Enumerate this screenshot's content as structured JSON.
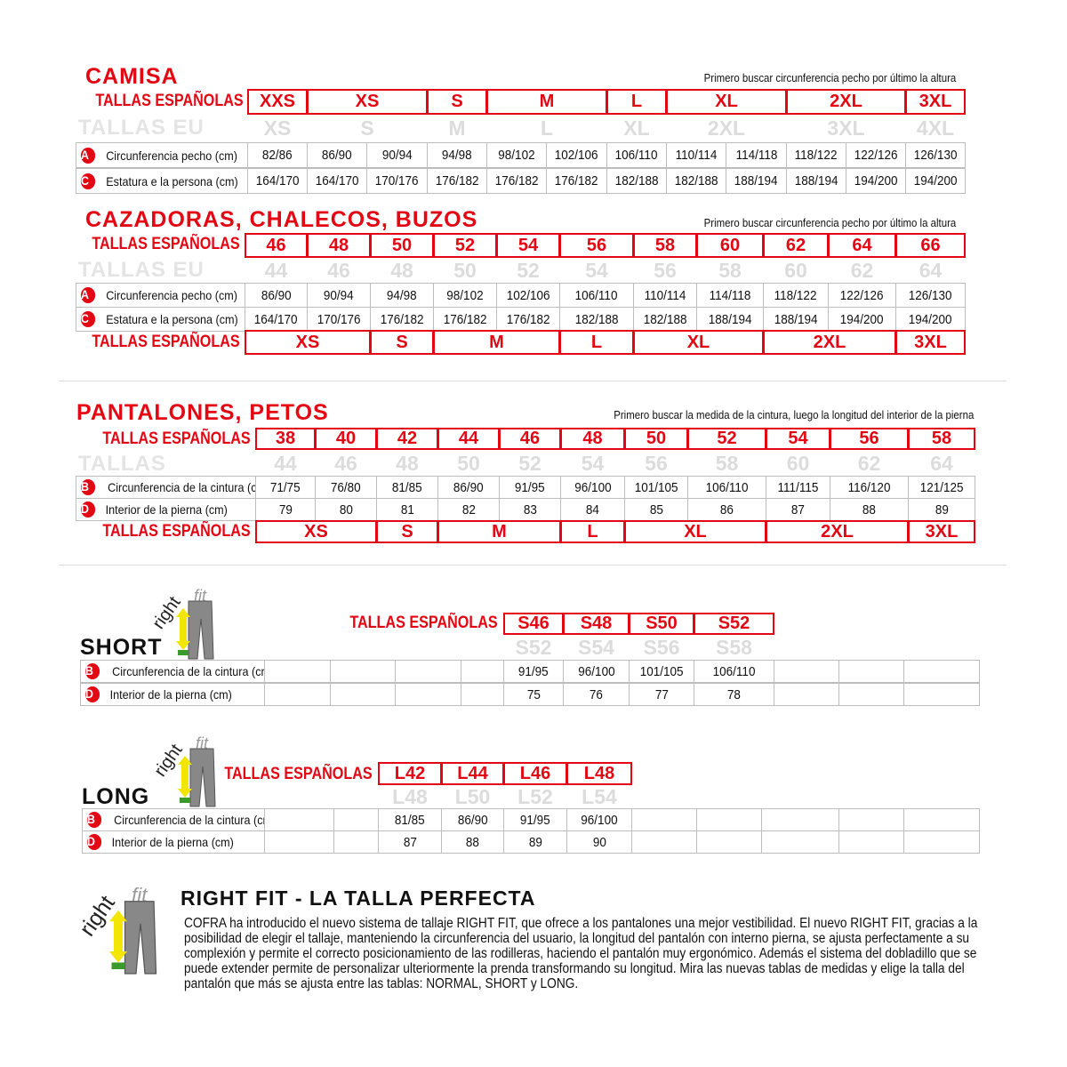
{
  "labels": {
    "tallas_es": "TALLAS ESPAÑOLAS",
    "tallas_eu": "TALLAS EU",
    "tallas": "TALLAS"
  },
  "camisa": {
    "title": "CAMISA",
    "note": "Primero buscar circunferencia pecho por último la altura",
    "es": [
      "XXS",
      "XS",
      "S",
      "M",
      "L",
      "XL",
      "2XL",
      "3XL"
    ],
    "eu": [
      "XS",
      "S",
      "M",
      "L",
      "XL",
      "2XL",
      "3XL",
      "4XL"
    ],
    "rows": [
      {
        "badge": "A",
        "label": "Circunferencia pecho (cm)",
        "values": [
          "82/86",
          "86/90",
          "90/94",
          "94/98",
          "98/102",
          "102/106",
          "106/110",
          "110/114",
          "114/118",
          "118/122",
          "122/126",
          "126/130"
        ]
      },
      {
        "badge": "C",
        "label": "Estatura e la persona (cm)",
        "values": [
          "164/170",
          "164/170",
          "170/176",
          "176/182",
          "176/182",
          "176/182",
          "182/188",
          "182/188",
          "188/194",
          "188/194",
          "194/200",
          "194/200"
        ]
      }
    ]
  },
  "cazadoras": {
    "title": "CAZADORAS, CHALECOS, BUZOS",
    "note": "Primero buscar circunferencia pecho por último la altura",
    "es": [
      "46",
      "48",
      "50",
      "52",
      "54",
      "56",
      "58",
      "60",
      "62",
      "64",
      "66"
    ],
    "eu": [
      "44",
      "46",
      "48",
      "50",
      "52",
      "54",
      "56",
      "58",
      "60",
      "62",
      "64"
    ],
    "rows": [
      {
        "badge": "A",
        "label": "Circunferencia pecho (cm)",
        "values": [
          "86/90",
          "90/94",
          "94/98",
          "98/102",
          "102/106",
          "106/110",
          "110/114",
          "114/118",
          "118/122",
          "122/126",
          "126/130"
        ]
      },
      {
        "badge": "C",
        "label": "Estatura e la persona (cm)",
        "values": [
          "164/170",
          "170/176",
          "176/182",
          "176/182",
          "176/182",
          "182/188",
          "182/188",
          "188/194",
          "188/194",
          "194/200",
          "194/200"
        ]
      }
    ],
    "es_letters": [
      "XS",
      "S",
      "M",
      "L",
      "XL",
      "2XL",
      "3XL"
    ]
  },
  "pantalones": {
    "title": "PANTALONES, PETOS",
    "note": "Primero buscar la medida de la cintura, luego la longitud del interior de la pierna",
    "es": [
      "38",
      "40",
      "42",
      "44",
      "46",
      "48",
      "50",
      "52",
      "54",
      "56",
      "58"
    ],
    "eu": [
      "44",
      "46",
      "48",
      "50",
      "52",
      "54",
      "56",
      "58",
      "60",
      "62",
      "64"
    ],
    "rows": [
      {
        "badge": "B",
        "label": "Circunferencia de la cintura (cm)",
        "values": [
          "71/75",
          "76/80",
          "81/85",
          "86/90",
          "91/95",
          "96/100",
          "101/105",
          "106/110",
          "111/115",
          "116/120",
          "121/125"
        ]
      },
      {
        "badge": "D",
        "label": "Interior de la pierna (cm)",
        "values": [
          "79",
          "80",
          "81",
          "82",
          "83",
          "84",
          "85",
          "86",
          "87",
          "88",
          "89"
        ]
      }
    ],
    "es_letters": [
      "XS",
      "S",
      "M",
      "L",
      "XL",
      "2XL",
      "3XL"
    ]
  },
  "short": {
    "title": "SHORT",
    "logo": "rightfit",
    "es": [
      "S46",
      "S48",
      "S50",
      "S52"
    ],
    "eu": [
      "S52",
      "S54",
      "S56",
      "S58"
    ],
    "rows": [
      {
        "badge": "B",
        "label": "Circunferencia de la cintura (cm)",
        "values": [
          "",
          "",
          "",
          "",
          "91/95",
          "96/100",
          "101/105",
          "106/110",
          "",
          "",
          ""
        ]
      },
      {
        "badge": "D",
        "label": "Interior de la pierna (cm)",
        "values": [
          "",
          "",
          "",
          "",
          "75",
          "76",
          "77",
          "78",
          "",
          "",
          ""
        ]
      }
    ]
  },
  "long": {
    "title": "LONG",
    "logo": "rightfit",
    "es": [
      "L42",
      "L44",
      "L46",
      "L48"
    ],
    "eu": [
      "L48",
      "L50",
      "L52",
      "L54"
    ],
    "rows": [
      {
        "badge": "B",
        "label": "Circunferencia de la cintura (cm)",
        "values": [
          "",
          "",
          "81/85",
          "86/90",
          "91/95",
          "96/100",
          "",
          "",
          "",
          "",
          ""
        ]
      },
      {
        "badge": "D",
        "label": "Interior de la pierna (cm)",
        "values": [
          "",
          "",
          "87",
          "88",
          "89",
          "90",
          "",
          "",
          "",
          "",
          ""
        ]
      }
    ]
  },
  "rightfit": {
    "logo": "rightfit",
    "title": "RIGHT FIT - LA TALLA PERFECTA",
    "text": "COFRA ha introducido el nuevo sistema de tallaje RIGHT FIT, que ofrece a los pantalones una mejor vestibilidad. El nuevo RIGHT FIT, gracias a la posibilidad de elegir el tallaje, manteniendo la circunferencia del usuario, la longitud del pantalón con interno pierna, se ajusta perfectamente a su complexión y permite el correcto posicionamiento de las rodilleras, haciendo el pantalón muy ergonómico. Además el sistema del dobladillo que se puede extender permite de personalizar ulteriormente la prenda transformando su longitud. Mira las nuevas tablas de medidas y elige la talla del pantalón que más se ajusta entre las tablas: NORMAL, SHORT y LONG."
  },
  "colors": {
    "accent": "#e30613",
    "eu_text": "#dcdcdc",
    "grid": "#bdbdbd"
  }
}
